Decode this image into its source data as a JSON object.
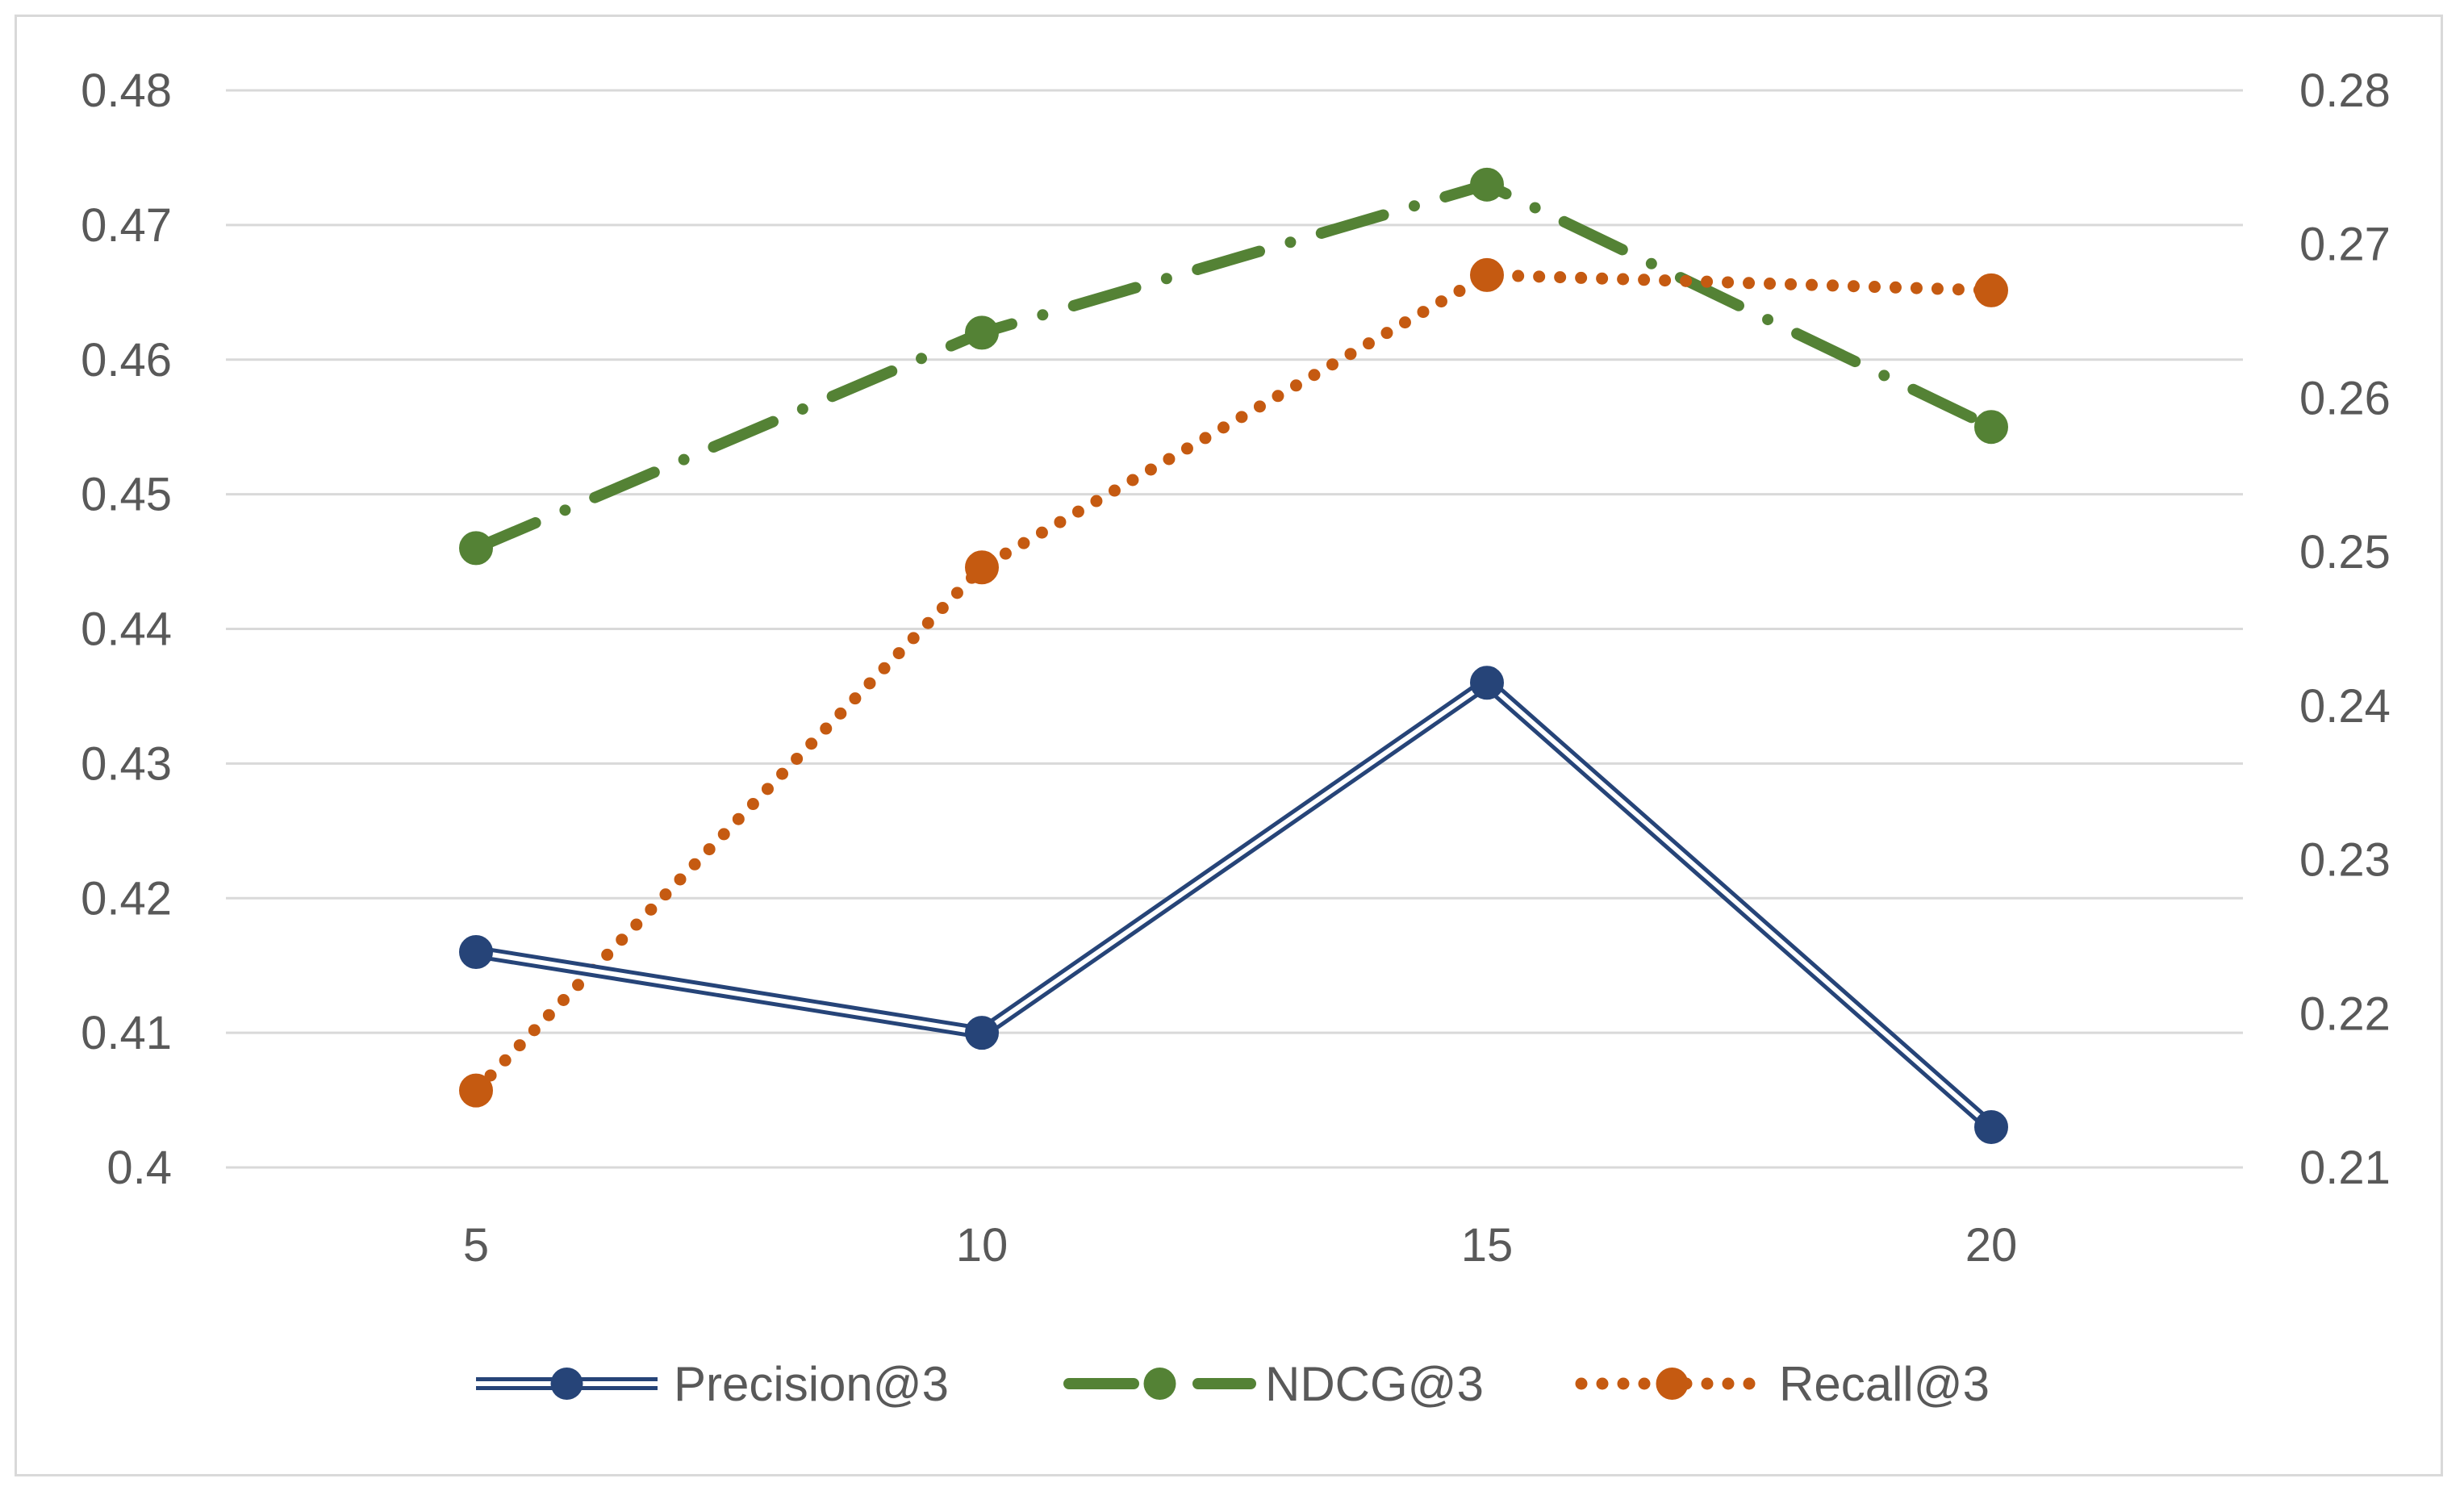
{
  "chart_data": {
    "type": "line",
    "title": "",
    "xlabel": "",
    "ylabel": "",
    "categories": [
      5,
      10,
      15,
      20
    ],
    "y_left": {
      "min": 0.4,
      "max": 0.48,
      "step": 0.01,
      "ticks": [
        "0.4",
        "0.41",
        "0.42",
        "0.43",
        "0.44",
        "0.45",
        "0.46",
        "0.47",
        "0.48"
      ]
    },
    "y_right": {
      "min": 0.21,
      "max": 0.28,
      "step": 0.01,
      "ticks": [
        "0.21",
        "0.22",
        "0.23",
        "0.24",
        "0.25",
        "0.26",
        "0.27",
        "0.28"
      ]
    },
    "grid": true,
    "legend_position": "bottom",
    "series": [
      {
        "name": "Precision@3",
        "axis": "left",
        "color": "#264478",
        "style": "double",
        "values": [
          0.416,
          0.41,
          0.436,
          0.403
        ]
      },
      {
        "name": "NDCG@3",
        "axis": "left",
        "color": "#548235",
        "style": "dash-dot",
        "values": [
          0.446,
          0.462,
          0.473,
          0.455
        ]
      },
      {
        "name": "Recall@3",
        "axis": "right",
        "color": "#c55a11",
        "style": "dotted",
        "values": [
          0.215,
          0.249,
          0.268,
          0.267
        ]
      }
    ]
  }
}
